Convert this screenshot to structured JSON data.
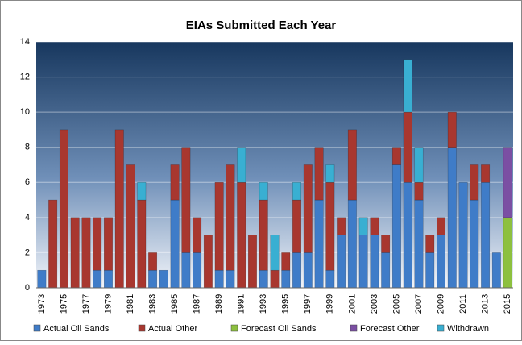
{
  "chart_data": {
    "type": "stacked_bar",
    "title": "EIAs Submitted Each Year",
    "categories": [
      "1973",
      null,
      "1975",
      null,
      "1977",
      null,
      "1979",
      null,
      "1981",
      null,
      "1983",
      null,
      "1985",
      null,
      "1987",
      null,
      "1989",
      null,
      "1991",
      null,
      "1993",
      null,
      "1995",
      null,
      "1997",
      null,
      "1999",
      null,
      "2001",
      null,
      "2003",
      null,
      "2005",
      null,
      "2007",
      null,
      "2009",
      null,
      "2011",
      null,
      "2013",
      null,
      "2015"
    ],
    "series": [
      {
        "name": "Actual Oil Sands",
        "color": "#3f7cc8",
        "values": [
          1,
          0,
          0,
          0,
          0,
          1,
          1,
          0,
          0,
          0,
          1,
          1,
          5,
          2,
          2,
          0,
          1,
          1,
          0,
          0,
          1,
          0,
          1,
          2,
          2,
          5,
          1,
          3,
          5,
          3,
          3,
          2,
          7,
          6,
          5,
          2,
          3,
          8,
          6,
          5,
          6,
          2,
          0
        ]
      },
      {
        "name": "Actual Other",
        "color": "#a8372f",
        "values": [
          0,
          5,
          9,
          4,
          4,
          3,
          3,
          9,
          7,
          5,
          1,
          0,
          2,
          6,
          2,
          3,
          5,
          6,
          6,
          3,
          4,
          1,
          1,
          3,
          5,
          3,
          5,
          1,
          4,
          0,
          1,
          1,
          1,
          4,
          1,
          1,
          1,
          2,
          0,
          2,
          1,
          0,
          0
        ]
      },
      {
        "name": "Forecast Oil Sands",
        "color": "#8dc03f",
        "values": [
          0,
          0,
          0,
          0,
          0,
          0,
          0,
          0,
          0,
          0,
          0,
          0,
          0,
          0,
          0,
          0,
          0,
          0,
          0,
          0,
          0,
          0,
          0,
          0,
          0,
          0,
          0,
          0,
          0,
          0,
          0,
          0,
          0,
          0,
          0,
          0,
          0,
          0,
          0,
          0,
          0,
          0,
          4
        ]
      },
      {
        "name": "Forecast Other",
        "color": "#7b4fa3",
        "values": [
          0,
          0,
          0,
          0,
          0,
          0,
          0,
          0,
          0,
          0,
          0,
          0,
          0,
          0,
          0,
          0,
          0,
          0,
          0,
          0,
          0,
          0,
          0,
          0,
          0,
          0,
          0,
          0,
          0,
          0,
          0,
          0,
          0,
          0,
          0,
          0,
          0,
          0,
          0,
          0,
          0,
          0,
          4
        ]
      },
      {
        "name": "Withdrawn",
        "color": "#39afd2",
        "values": [
          0,
          0,
          0,
          0,
          0,
          0,
          0,
          0,
          0,
          1,
          0,
          0,
          0,
          0,
          0,
          0,
          0,
          0,
          2,
          0,
          1,
          2,
          0,
          1,
          0,
          0,
          1,
          0,
          0,
          1,
          0,
          0,
          0,
          3,
          2,
          0,
          0,
          0,
          0,
          0,
          0,
          0,
          0
        ]
      }
    ],
    "ylim": [
      0,
      14
    ],
    "yticks": [
      0,
      2,
      4,
      6,
      8,
      10,
      12,
      14
    ],
    "grid": true
  }
}
